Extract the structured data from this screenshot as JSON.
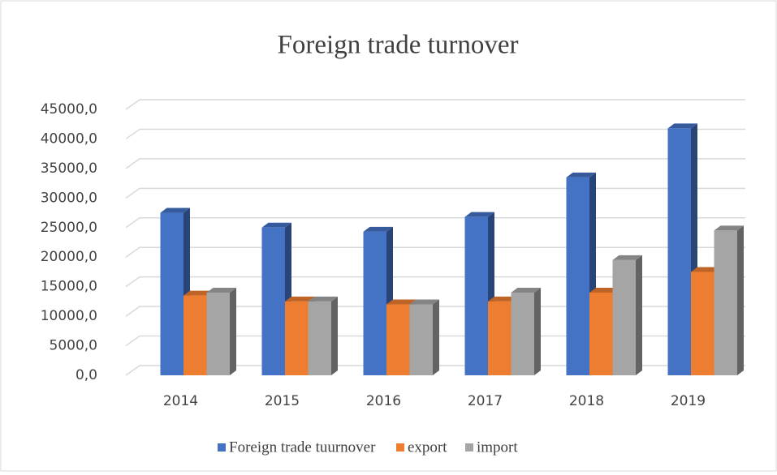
{
  "chart_data": {
    "type": "bar3d",
    "title": "Foreign trade turnover",
    "categories": [
      "2014",
      "2015",
      "2016",
      "2017",
      "2018",
      "2019"
    ],
    "series": [
      {
        "name": "Foreign trade tuurnover",
        "color": "#4472c4",
        "values": [
          27500,
          25000,
          24300,
          26800,
          33500,
          41800
        ]
      },
      {
        "name": "export",
        "color": "#ed7d31",
        "values": [
          13500,
          12500,
          12000,
          12500,
          14000,
          17500
        ]
      },
      {
        "name": "import",
        "color": "#a5a5a5",
        "values": [
          14000,
          12500,
          12000,
          14000,
          19500,
          24500
        ]
      }
    ],
    "ylim": [
      0,
      45000
    ],
    "yticks": [
      {
        "value": 0,
        "label": "0,0"
      },
      {
        "value": 5000,
        "label": "5000,0"
      },
      {
        "value": 10000,
        "label": "10000,0"
      },
      {
        "value": 15000,
        "label": "15000,0"
      },
      {
        "value": 20000,
        "label": "20000,0"
      },
      {
        "value": 25000,
        "label": "25000,0"
      },
      {
        "value": 30000,
        "label": "30000,0"
      },
      {
        "value": 35000,
        "label": "35000,0"
      },
      {
        "value": 40000,
        "label": "40000,0"
      },
      {
        "value": 45000,
        "label": "45000,0"
      }
    ],
    "grid": true,
    "legend": "bottom"
  }
}
